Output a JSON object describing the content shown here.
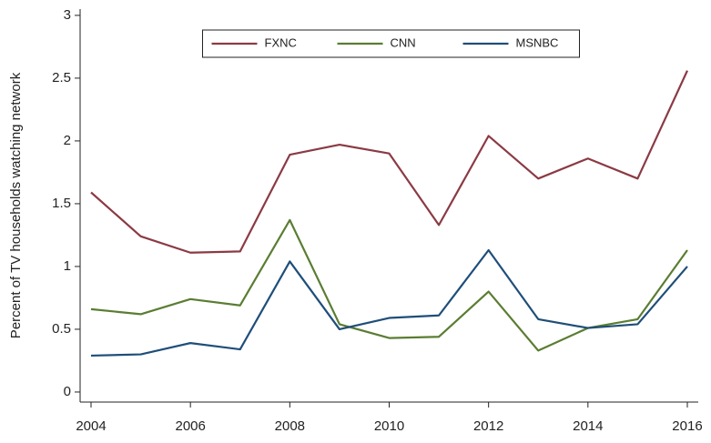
{
  "chart_data": {
    "type": "line",
    "y_label": "Percent of TV households watching network",
    "x": [
      2004,
      2005,
      2006,
      2007,
      2008,
      2009,
      2010,
      2011,
      2012,
      2013,
      2014,
      2015,
      2016
    ],
    "series": [
      {
        "name": "FXNC",
        "color": "#8b3a44",
        "values": [
          1.59,
          1.24,
          1.11,
          1.12,
          1.89,
          1.97,
          1.9,
          1.33,
          2.04,
          1.7,
          1.86,
          1.7,
          2.56
        ]
      },
      {
        "name": "CNN",
        "color": "#5a7d32",
        "values": [
          0.66,
          0.62,
          0.74,
          0.69,
          1.37,
          0.54,
          0.43,
          0.44,
          0.8,
          0.33,
          0.51,
          0.58,
          1.13
        ]
      },
      {
        "name": "MSNBC",
        "color": "#1f4e79",
        "values": [
          0.29,
          0.3,
          0.39,
          0.34,
          1.04,
          0.5,
          0.59,
          0.61,
          1.13,
          0.58,
          0.51,
          0.54,
          1.0
        ]
      }
    ],
    "xlim": [
      2003.78,
      2016.22
    ],
    "xticks": [
      2004,
      2006,
      2008,
      2010,
      2012,
      2014,
      2016
    ],
    "ylim": [
      -0.08,
      3.05
    ],
    "yticks": [
      0,
      0.5,
      1,
      1.5,
      2,
      2.5,
      3
    ],
    "legend": "top"
  }
}
